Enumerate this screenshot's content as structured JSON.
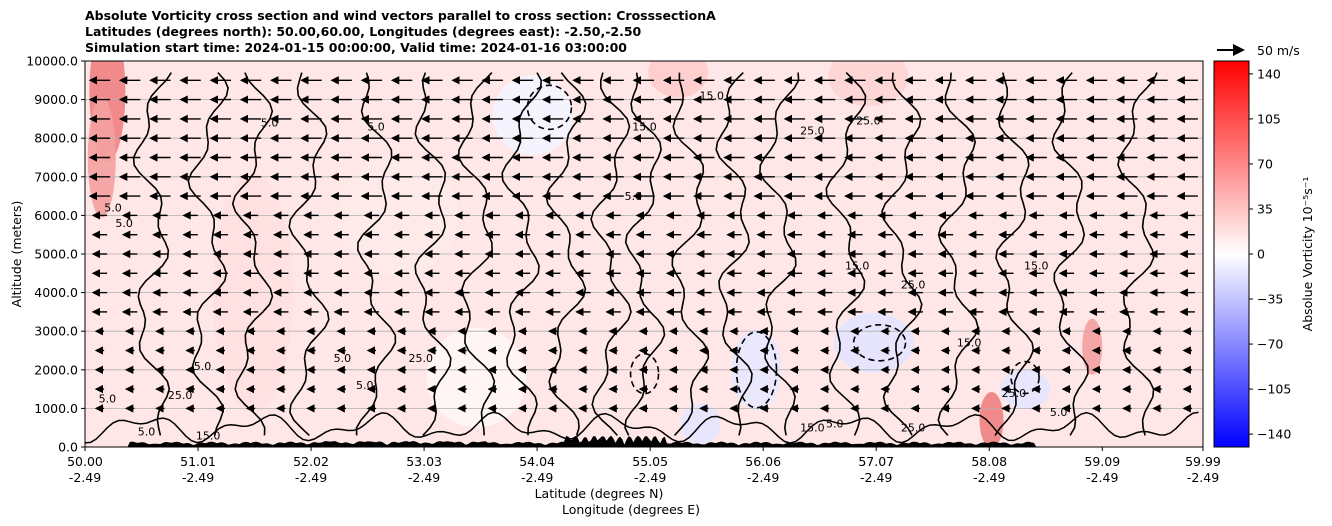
{
  "title_lines": [
    "Absolute Vorticity cross section and wind vectors parallel to cross section: CrosssectionA",
    "Latitudes (degrees north): 50.00,60.00, Longitudes (degrees east): -2.50,-2.50",
    "Simulation start time: 2024-01-15 00:00:00, Valid time: 2024-01-16 03:00:00"
  ],
  "quiver_key": {
    "label": "50 m/s"
  },
  "colors": {
    "positive_max": "#ff0000",
    "zero": "#ffffff",
    "negative_max": "#0000ff",
    "terrain": "#000000"
  },
  "chart_data": {
    "type": "heatmap",
    "plot_kind": "vertical cross section (filled contours + contour lines + wind vectors)",
    "xlabel_lines": [
      "Latitude (degrees N)",
      "Longitude (degrees E)"
    ],
    "ylabel": "Altitude (meters)",
    "ylim": [
      0,
      10000
    ],
    "xlim": [
      50.0,
      59.99
    ],
    "y_ticks": [
      "0.0",
      "1000.0",
      "2000.0",
      "3000.0",
      "4000.0",
      "5000.0",
      "6000.0",
      "7000.0",
      "8000.0",
      "9000.0",
      "10000.0"
    ],
    "x_ticks": [
      {
        "lat": "50.00",
        "lon": "-2.49"
      },
      {
        "lat": "51.01",
        "lon": "-2.49"
      },
      {
        "lat": "52.02",
        "lon": "-2.49"
      },
      {
        "lat": "53.03",
        "lon": "-2.49"
      },
      {
        "lat": "54.04",
        "lon": "-2.49"
      },
      {
        "lat": "55.05",
        "lon": "-2.49"
      },
      {
        "lat": "56.06",
        "lon": "-2.49"
      },
      {
        "lat": "57.07",
        "lon": "-2.49"
      },
      {
        "lat": "58.08",
        "lon": "-2.49"
      },
      {
        "lat": "59.09",
        "lon": "-2.49"
      },
      {
        "lat": "59.99",
        "lon": "-2.49"
      }
    ],
    "grid": "horizontal lines on",
    "colorbar": {
      "label": "Absolue Vorticity 10⁻⁵s⁻¹",
      "range": [
        -150,
        150
      ],
      "ticks": [
        "140",
        "105",
        "70",
        "35",
        "0",
        "−35",
        "−70",
        "−105",
        "−140"
      ],
      "tick_values": [
        140,
        105,
        70,
        35,
        0,
        -35,
        -70,
        -105,
        -140
      ],
      "colormap": "bwr"
    },
    "contour_labels": [
      {
        "text": "5.0",
        "lat": 50.2,
        "alt": 1150
      },
      {
        "text": "25.0",
        "lat": 50.85,
        "alt": 1250
      },
      {
        "text": "5.0",
        "lat": 51.05,
        "alt": 2000
      },
      {
        "text": "5.0",
        "lat": 51.65,
        "alt": 8300
      },
      {
        "text": "5.0",
        "lat": 52.6,
        "alt": 8200
      },
      {
        "text": "5.0",
        "lat": 50.25,
        "alt": 6100
      },
      {
        "text": "5.0",
        "lat": 50.35,
        "alt": 5700
      },
      {
        "text": "5.0",
        "lat": 52.3,
        "alt": 2200
      },
      {
        "text": "25.0",
        "lat": 53.0,
        "alt": 2200
      },
      {
        "text": "5.0",
        "lat": 52.5,
        "alt": 1500
      },
      {
        "text": "15.0",
        "lat": 55.6,
        "alt": 9000
      },
      {
        "text": "25.0",
        "lat": 57.0,
        "alt": 8350
      },
      {
        "text": "15.0",
        "lat": 56.9,
        "alt": 4600
      },
      {
        "text": "25.0",
        "lat": 57.4,
        "alt": 4100
      },
      {
        "text": "15.0",
        "lat": 58.5,
        "alt": 4600
      },
      {
        "text": "5.0",
        "lat": 58.7,
        "alt": 800
      },
      {
        "text": "5.0",
        "lat": 56.7,
        "alt": 500
      },
      {
        "text": "15.0",
        "lat": 56.5,
        "alt": 400
      },
      {
        "text": "25.0",
        "lat": 57.4,
        "alt": 400
      },
      {
        "text": "15.0",
        "lat": 51.1,
        "alt": 200
      },
      {
        "text": "5.0",
        "lat": 50.55,
        "alt": 300
      },
      {
        "text": "15.0",
        "lat": 55.0,
        "alt": 8200
      },
      {
        "text": "25.0",
        "lat": 56.5,
        "alt": 8100
      },
      {
        "text": "15.0",
        "lat": 57.9,
        "alt": 2600
      },
      {
        "text": "25.0",
        "lat": 58.3,
        "alt": 1300
      },
      {
        "text": "5.0",
        "lat": 54.9,
        "alt": 6400
      }
    ]
  }
}
